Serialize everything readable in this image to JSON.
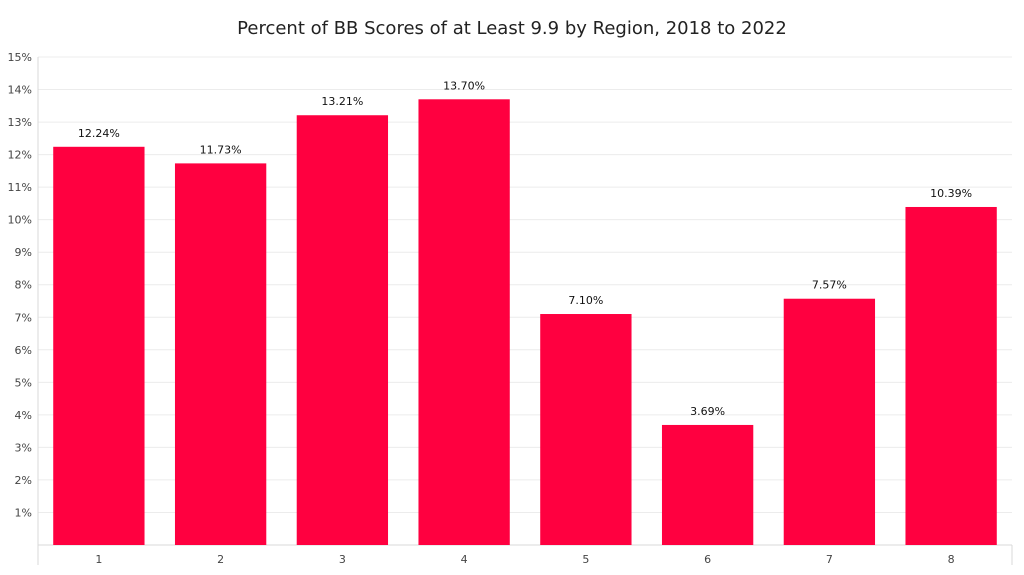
{
  "chart_data": {
    "type": "bar",
    "title": "Percent of BB Scores of at Least 9.9 by Region, 2018 to 2022",
    "xlabel": "",
    "ylabel": "",
    "categories": [
      "1",
      "2",
      "3",
      "4",
      "5",
      "6",
      "7",
      "8"
    ],
    "values": [
      12.24,
      11.73,
      13.21,
      13.7,
      7.1,
      3.69,
      7.57,
      10.39
    ],
    "data_labels": [
      "12.24%",
      "11.73%",
      "13.21%",
      "13.70%",
      "7.10%",
      "3.69%",
      "7.57%",
      "10.39%"
    ],
    "ylim": [
      0,
      15
    ],
    "y_ticks": [
      "1%",
      "2%",
      "3%",
      "4%",
      "5%",
      "6%",
      "7%",
      "8%",
      "9%",
      "10%",
      "11%",
      "12%",
      "13%",
      "14%",
      "15%"
    ],
    "grid": true,
    "legend": "none",
    "bar_color": "#FF0040"
  }
}
